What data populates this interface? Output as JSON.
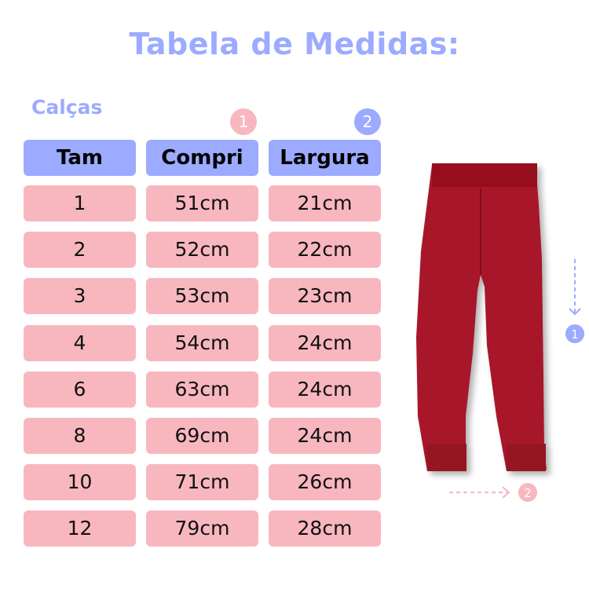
{
  "title": "Tabela de Medidas:",
  "subtitle": "Calças",
  "colors": {
    "accent_blue": "#9cabff",
    "accent_pink": "#f8b7bf",
    "pants": "#a8142a"
  },
  "badges": {
    "compri": "1",
    "largura": "2"
  },
  "table": {
    "headers": [
      "Tam",
      "Compri",
      "Largura"
    ],
    "rows": [
      [
        "1",
        "51cm",
        "21cm"
      ],
      [
        "2",
        "52cm",
        "22cm"
      ],
      [
        "3",
        "53cm",
        "23cm"
      ],
      [
        "4",
        "54cm",
        "24cm"
      ],
      [
        "6",
        "63cm",
        "24cm"
      ],
      [
        "8",
        "69cm",
        "24cm"
      ],
      [
        "10",
        "71cm",
        "26cm"
      ],
      [
        "12",
        "79cm",
        "28cm"
      ]
    ]
  },
  "image": {
    "subject": "pants-photo",
    "marker_length": "1",
    "marker_width": "2"
  }
}
